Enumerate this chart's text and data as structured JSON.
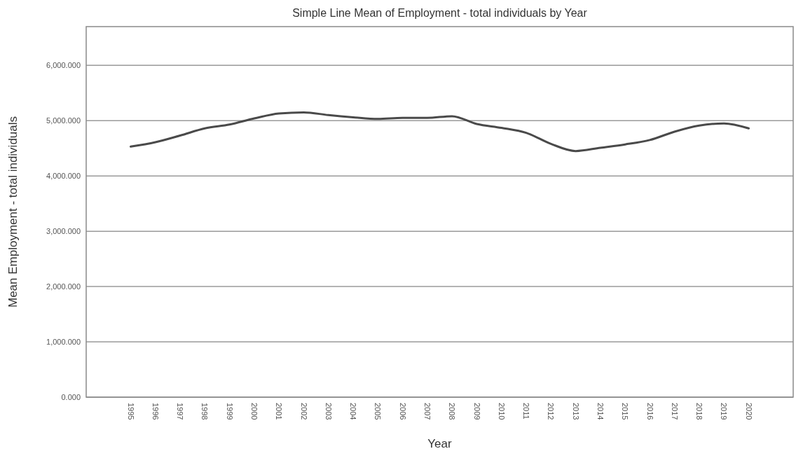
{
  "chart_data": {
    "type": "line",
    "title": "Simple Line Mean of Employment - total individuals by Year",
    "xlabel": "Year",
    "ylabel": "Mean Employment - total individuals",
    "categories": [
      "1995",
      "1996",
      "1997",
      "1998",
      "1999",
      "2000",
      "2001",
      "2002",
      "2003",
      "2004",
      "2005",
      "2006",
      "2007",
      "2008",
      "2009",
      "2010",
      "2011",
      "2012",
      "2013",
      "2014",
      "2015",
      "2016",
      "2017",
      "2018",
      "2019",
      "2020"
    ],
    "series": [
      {
        "color": "#4a4a4a",
        "values": [
          4530,
          4610,
          4730,
          4860,
          4930,
          5040,
          5130,
          5150,
          5100,
          5060,
          5030,
          5050,
          5050,
          5080,
          4940,
          4870,
          4780,
          4580,
          4450,
          4510,
          4570,
          4650,
          4800,
          4910,
          4950,
          4860
        ]
      }
    ],
    "ylim": [
      0,
      6700
    ],
    "yticks": [
      {
        "value": 0,
        "label": "0.000"
      },
      {
        "value": 1000,
        "label": "1,000.000"
      },
      {
        "value": 2000,
        "label": "2,000.000"
      },
      {
        "value": 3000,
        "label": "3,000.000"
      },
      {
        "value": 4000,
        "label": "4,000.000"
      },
      {
        "value": 5000,
        "label": "5,000.000"
      },
      {
        "value": 6000,
        "label": "6,000.000"
      }
    ],
    "grid": "y",
    "marker": "none",
    "line_style": "solid"
  }
}
